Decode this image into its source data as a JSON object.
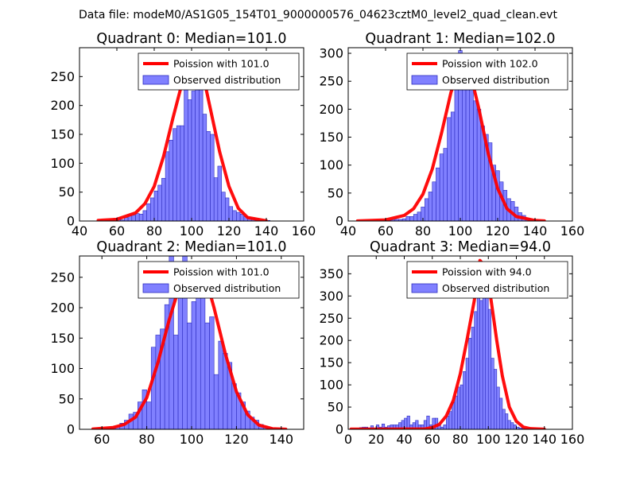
{
  "figure": {
    "suptitle": "Data file: modeM0/AS1G05_154T01_9000000576_04623cztM0_level2_quad_clean.evt"
  },
  "colors": {
    "bar_fill": "#8080ff",
    "bar_edge": "#2b2bbf",
    "curve": "#ff0000"
  },
  "chart_data": [
    {
      "type": "bar",
      "title": "Quadrant 0: Median=101.0",
      "xlim": [
        40,
        160
      ],
      "ylim": [
        0,
        300
      ],
      "xticks": [
        40,
        60,
        80,
        100,
        120,
        140,
        160
      ],
      "yticks": [
        0,
        50,
        100,
        150,
        200,
        250
      ],
      "legend": {
        "curve_label": "Poission with 101.0",
        "bars_label": "Observed distribution",
        "placement": "top-right"
      },
      "poisson_mean": 101.0,
      "curve_x": [
        50,
        60,
        70,
        75,
        80,
        85,
        90,
        95,
        98,
        100,
        101,
        102,
        104,
        107,
        110,
        115,
        120,
        125,
        130,
        140
      ],
      "curve_y": [
        1,
        3,
        14,
        30,
        60,
        112,
        178,
        240,
        268,
        278,
        279,
        277,
        266,
        240,
        195,
        120,
        60,
        22,
        6,
        0.3
      ],
      "bar_start": 50,
      "bar_width": 2,
      "counts": [
        1,
        0,
        1,
        2,
        4,
        6,
        2,
        6,
        10,
        10,
        13,
        12,
        18,
        30,
        40,
        52,
        62,
        74,
        120,
        140,
        160,
        165,
        165,
        290,
        210,
        225,
        290,
        240,
        185,
        155,
        150,
        75,
        95,
        50,
        40,
        25,
        18,
        15,
        12,
        8,
        6,
        5,
        3,
        1,
        1,
        1,
        0,
        0
      ]
    },
    {
      "type": "bar",
      "title": "Quadrant 1: Median=102.0",
      "xlim": [
        40,
        160
      ],
      "ylim": [
        0,
        310
      ],
      "xticks": [
        40,
        60,
        80,
        100,
        120,
        140,
        160
      ],
      "yticks": [
        0,
        50,
        100,
        150,
        200,
        250,
        300
      ],
      "legend": {
        "curve_label": "Poission with 102.0",
        "bars_label": "Observed distribution",
        "placement": "top-right"
      },
      "poisson_mean": 102.0,
      "curve_x": [
        45,
        60,
        70,
        75,
        80,
        85,
        90,
        95,
        99,
        102,
        105,
        110,
        115,
        120,
        125,
        130,
        140,
        145
      ],
      "curve_y": [
        0.2,
        2,
        10,
        22,
        48,
        93,
        158,
        230,
        270,
        283,
        270,
        200,
        120,
        58,
        22,
        8,
        1,
        0.2
      ],
      "bar_start": 55,
      "bar_width": 2,
      "counts": [
        0,
        1,
        1,
        1,
        2,
        3,
        3,
        4,
        8,
        8,
        12,
        16,
        25,
        40,
        52,
        70,
        95,
        120,
        130,
        185,
        195,
        240,
        305,
        275,
        245,
        270,
        215,
        200,
        170,
        155,
        140,
        100,
        90,
        70,
        55,
        40,
        35,
        25,
        15,
        10,
        5,
        3,
        2,
        1,
        1
      ]
    },
    {
      "type": "bar",
      "title": "Quadrant 2: Median=101.0",
      "xlim": [
        50,
        150
      ],
      "ylim": [
        0,
        285
      ],
      "xticks": [
        60,
        80,
        100,
        120,
        140
      ],
      "yticks": [
        0,
        50,
        100,
        150,
        200,
        250
      ],
      "legend": {
        "curve_label": "Poission with 101.0",
        "bars_label": "Observed distribution",
        "placement": "top-right"
      },
      "poisson_mean": 101.0,
      "curve_x": [
        56,
        65,
        70,
        75,
        80,
        85,
        90,
        95,
        98,
        101,
        104,
        107,
        110,
        115,
        120,
        125,
        130,
        136,
        142
      ],
      "curve_y": [
        0.5,
        3,
        8,
        20,
        52,
        110,
        180,
        240,
        266,
        272,
        266,
        240,
        200,
        125,
        62,
        24,
        7,
        1,
        0.2
      ],
      "bar_start": 56,
      "bar_width": 2,
      "counts": [
        0,
        0,
        1,
        2,
        4,
        5,
        10,
        15,
        25,
        28,
        45,
        65,
        45,
        135,
        155,
        165,
        205,
        290,
        155,
        225,
        295,
        175,
        210,
        240,
        220,
        175,
        185,
        90,
        145,
        125,
        110,
        75,
        60,
        45,
        30,
        20,
        15,
        8,
        5,
        3,
        1,
        1,
        1
      ]
    },
    {
      "type": "bar",
      "title": "Quadrant 3: Median=94.0",
      "xlim": [
        0,
        160
      ],
      "ylim": [
        0,
        390
      ],
      "xticks": [
        0,
        20,
        40,
        60,
        80,
        100,
        120,
        140,
        160
      ],
      "yticks": [
        0,
        50,
        100,
        150,
        200,
        250,
        300,
        350
      ],
      "legend": {
        "curve_label": "Poission with 94.0",
        "bars_label": "Observed distribution",
        "placement": "top-right"
      },
      "poisson_mean": 94.0,
      "curve_x": [
        2,
        30,
        55,
        60,
        65,
        70,
        75,
        80,
        85,
        90,
        94,
        98,
        102,
        106,
        110,
        115,
        120,
        125,
        130,
        140
      ],
      "curve_y": [
        0.5,
        0.5,
        1,
        4,
        11,
        30,
        65,
        125,
        205,
        290,
        380,
        365,
        290,
        200,
        120,
        50,
        18,
        5,
        1.5,
        0.2
      ],
      "bar_start": 2,
      "bar_width": 2,
      "counts": [
        1,
        1,
        1,
        4,
        5,
        5,
        3,
        8,
        2,
        10,
        5,
        12,
        5,
        8,
        10,
        10,
        10,
        15,
        20,
        25,
        30,
        10,
        15,
        20,
        10,
        10,
        20,
        30,
        10,
        25,
        25,
        10,
        5,
        10,
        30,
        40,
        60,
        75,
        95,
        100,
        130,
        160,
        205,
        230,
        265,
        305,
        290,
        325,
        345,
        270,
        160,
        135,
        95,
        70,
        45,
        35,
        20,
        15,
        10,
        5,
        3,
        2,
        1,
        1,
        1,
        0,
        0,
        0,
        0
      ]
    }
  ]
}
